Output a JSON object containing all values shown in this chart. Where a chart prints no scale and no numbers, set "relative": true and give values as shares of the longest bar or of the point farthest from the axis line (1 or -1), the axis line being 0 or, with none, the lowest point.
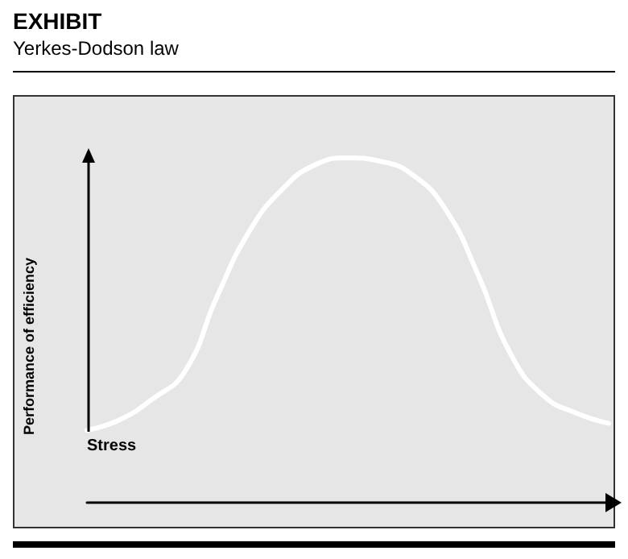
{
  "chart_data": {
    "type": "line",
    "title": "EXHIBIT",
    "subtitle": "Yerkes-Dodson law",
    "xlabel": "Stress",
    "ylabel": "Performance of efficiency",
    "relative": true,
    "categories": [
      null,
      null,
      null,
      null,
      null,
      null,
      null,
      null,
      null,
      null,
      null,
      null,
      null,
      null,
      null,
      null,
      null
    ],
    "series": [
      {
        "color": "#ffffff",
        "values": [
          0.21,
          0.24,
          0.3,
          0.38,
          0.6,
          0.79,
          0.91,
          0.98,
          1,
          0.99,
          0.95,
          0.85,
          0.66,
          0.43,
          0.31,
          0.26,
          0.23
        ]
      }
    ],
    "marker": "none",
    "line_style": "solid",
    "grid": false
  }
}
